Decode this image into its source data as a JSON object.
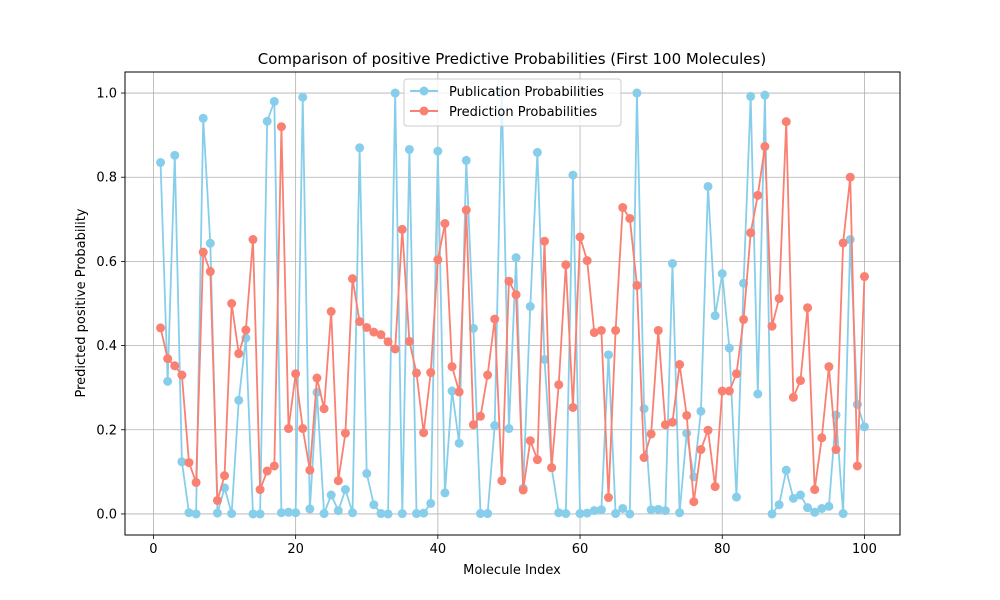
{
  "chart_data": {
    "type": "line",
    "title": "Comparison of positive Predictive Probabilities (First 100 Molecules)",
    "xlabel": "Molecule Index",
    "ylabel": "Predicted positive Probability",
    "xlim": [
      -4,
      105
    ],
    "ylim": [
      -0.05,
      1.05
    ],
    "xticks": [
      0,
      20,
      40,
      60,
      80,
      100
    ],
    "yticks": [
      0.0,
      0.2,
      0.4,
      0.6,
      0.8,
      1.0
    ],
    "xtick_labels": [
      "0",
      "20",
      "40",
      "60",
      "80",
      "100"
    ],
    "ytick_labels": [
      "0.0",
      "0.2",
      "0.4",
      "0.6",
      "0.8",
      "1.0"
    ],
    "grid": true,
    "legend_position": "upper-center",
    "x": [
      1,
      2,
      3,
      4,
      5,
      6,
      7,
      8,
      9,
      10,
      11,
      12,
      13,
      14,
      15,
      16,
      17,
      18,
      19,
      20,
      21,
      22,
      23,
      24,
      25,
      26,
      27,
      28,
      29,
      30,
      31,
      32,
      33,
      34,
      35,
      36,
      37,
      38,
      39,
      40,
      41,
      42,
      43,
      44,
      45,
      46,
      47,
      48,
      49,
      50,
      51,
      52,
      53,
      54,
      55,
      56,
      57,
      58,
      59,
      60,
      61,
      62,
      63,
      64,
      65,
      66,
      67,
      68,
      69,
      70,
      71,
      72,
      73,
      74,
      75,
      76,
      77,
      78,
      79,
      80,
      81,
      82,
      83,
      84,
      85,
      86,
      87,
      88,
      89,
      90,
      91,
      92,
      93,
      94,
      95,
      96,
      97,
      98,
      99,
      100
    ],
    "series": [
      {
        "name": "Publication Probabilities",
        "color": "#87CEEB",
        "values": [
          0.835,
          0.315,
          0.852,
          0.124,
          0.003,
          0.0,
          0.94,
          0.643,
          0.002,
          0.062,
          0.001,
          0.27,
          0.418,
          0.0,
          0.0,
          0.933,
          0.98,
          0.003,
          0.004,
          0.003,
          0.99,
          0.012,
          0.289,
          0.001,
          0.045,
          0.008,
          0.058,
          0.003,
          0.87,
          0.096,
          0.022,
          0.001,
          0.0,
          1.0,
          0.001,
          0.866,
          0.001,
          0.002,
          0.025,
          0.862,
          0.05,
          0.292,
          0.168,
          0.84,
          0.441,
          0.001,
          0.001,
          0.21,
          0.999,
          0.203,
          0.609,
          0.061,
          0.493,
          0.859,
          0.367,
          0.11,
          0.003,
          0.001,
          0.805,
          0.001,
          0.002,
          0.008,
          0.01,
          0.378,
          0.001,
          0.013,
          0.0,
          1.0,
          0.25,
          0.01,
          0.011,
          0.008,
          0.595,
          0.003,
          0.192,
          0.088,
          0.244,
          0.778,
          0.471,
          0.571,
          0.394,
          0.04,
          0.548,
          0.992,
          0.285,
          0.995,
          0.0,
          0.022,
          0.104,
          0.037,
          0.045,
          0.015,
          0.004,
          0.013,
          0.018,
          0.235,
          0.001,
          0.652,
          0.26,
          0.207
        ]
      },
      {
        "name": "Prediction Probabilities",
        "color": "#FA8072",
        "values": [
          0.442,
          0.369,
          0.352,
          0.33,
          0.122,
          0.075,
          0.622,
          0.576,
          0.032,
          0.091,
          0.5,
          0.381,
          0.437,
          0.652,
          0.058,
          0.102,
          0.114,
          0.92,
          0.203,
          0.333,
          0.203,
          0.104,
          0.323,
          0.25,
          0.481,
          0.079,
          0.192,
          0.559,
          0.457,
          0.443,
          0.432,
          0.426,
          0.409,
          0.392,
          0.676,
          0.41,
          0.335,
          0.193,
          0.336,
          0.604,
          0.69,
          0.35,
          0.29,
          0.722,
          0.212,
          0.232,
          0.33,
          0.463,
          0.079,
          0.553,
          0.521,
          0.057,
          0.174,
          0.129,
          0.648,
          0.11,
          0.307,
          0.592,
          0.253,
          0.658,
          0.602,
          0.431,
          0.436,
          0.039,
          0.436,
          0.728,
          0.702,
          0.543,
          0.134,
          0.19,
          0.436,
          0.212,
          0.218,
          0.355,
          0.234,
          0.029,
          0.153,
          0.199,
          0.065,
          0.292,
          0.292,
          0.333,
          0.462,
          0.668,
          0.757,
          0.873,
          0.446,
          0.512,
          0.932,
          0.277,
          0.317,
          0.49,
          0.058,
          0.181,
          0.35,
          0.153,
          0.644,
          0.8,
          0.114,
          0.564
        ]
      }
    ]
  }
}
